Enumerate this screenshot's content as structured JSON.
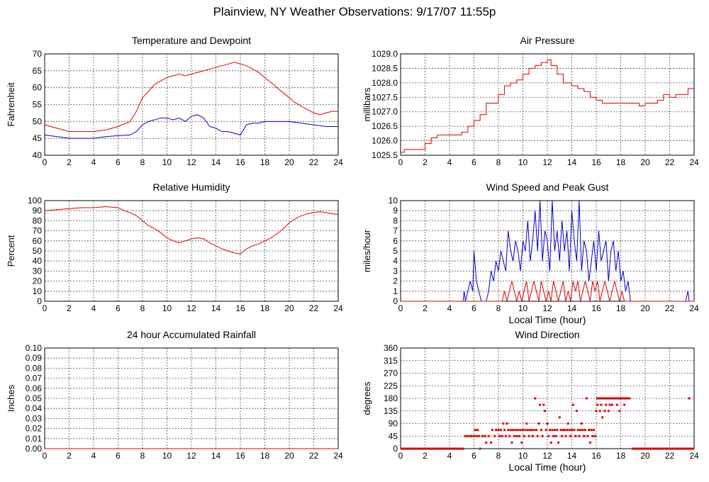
{
  "page": {
    "title": "Plainview, NY Weather Observations: 9/17/07 11:55p"
  },
  "colors": {
    "temperature": "#dd0000",
    "dewpoint": "#0000cc",
    "gust": "#0000cc",
    "speed": "#dd0000",
    "grid": "#555555"
  },
  "chart_data": [
    {
      "id": "temp",
      "type": "line",
      "title": "Temperature and Dewpoint",
      "xlabel": "",
      "ylabel": "Fahrenheit",
      "xlim": [
        0,
        24
      ],
      "ylim": [
        40,
        70
      ],
      "xticks": [
        0,
        2,
        4,
        6,
        8,
        10,
        12,
        14,
        16,
        18,
        20,
        22,
        24
      ],
      "yticks": [
        "40",
        "45",
        "50",
        "55",
        "60",
        "65",
        "70"
      ],
      "grid": true,
      "series": [
        {
          "color": "#dd0000",
          "x": [
            0,
            1,
            2,
            3,
            4,
            5,
            6,
            7,
            7.5,
            8,
            8.5,
            9,
            9.5,
            10,
            10.5,
            11,
            11.5,
            12,
            12.5,
            13,
            13.5,
            14,
            14.5,
            15,
            15.5,
            16,
            16.5,
            17,
            17.5,
            18,
            18.5,
            19,
            19.5,
            20,
            20.5,
            21,
            21.5,
            22,
            22.5,
            23,
            23.5,
            24
          ],
          "y": [
            49,
            48,
            47,
            47,
            47,
            47.5,
            48.5,
            50,
            53,
            57,
            59,
            61,
            62,
            63,
            63.5,
            64,
            63.5,
            64,
            64.5,
            65,
            65.5,
            66,
            66.5,
            67,
            67.5,
            67,
            66.5,
            65.5,
            64.5,
            63,
            61.5,
            60,
            58.5,
            57,
            55.5,
            54.5,
            53.5,
            52.5,
            52,
            52.5,
            53,
            53
          ]
        },
        {
          "color": "#0000cc",
          "x": [
            0,
            1,
            2,
            3,
            4,
            5,
            6,
            7,
            7.5,
            8,
            8.5,
            9,
            9.5,
            10,
            10.5,
            11,
            11.5,
            12,
            12.5,
            13,
            13.5,
            14,
            14.5,
            15,
            15.5,
            16,
            16.5,
            17,
            17.5,
            18,
            19,
            20,
            21,
            22,
            23,
            24
          ],
          "y": [
            46,
            45.5,
            45,
            45,
            45,
            45.5,
            45.8,
            46,
            47,
            49,
            50,
            50.5,
            51,
            51,
            50.5,
            51,
            50,
            51.5,
            52,
            51,
            48.5,
            48,
            47,
            47,
            46.5,
            46,
            49,
            49.5,
            49.5,
            50,
            50,
            50,
            49.5,
            49,
            48.5,
            48.5
          ]
        }
      ]
    },
    {
      "id": "pressure",
      "type": "line",
      "title": "Air Pressure",
      "xlabel": "",
      "ylabel": "millibars",
      "xlim": [
        0,
        24
      ],
      "ylim": [
        1025.5,
        1029.0
      ],
      "xticks": [
        0,
        2,
        4,
        6,
        8,
        10,
        12,
        14,
        16,
        18,
        20,
        22,
        24
      ],
      "yticks": [
        "1025.5",
        "1026.0",
        "1026.5",
        "1027.0",
        "1027.5",
        "1028.0",
        "1028.5",
        "1029.0"
      ],
      "grid": true,
      "series": [
        {
          "color": "#dd0000",
          "step": true,
          "x": [
            0,
            0.3,
            1,
            2,
            2.5,
            3,
            4,
            5,
            5.5,
            6,
            6.5,
            7,
            7.5,
            8,
            8.5,
            9,
            9.5,
            10,
            10.5,
            11,
            11.5,
            12,
            12.3,
            12.8,
            13.3,
            14,
            14.5,
            15,
            15.5,
            16,
            16.5,
            17,
            18,
            19,
            19.5,
            20,
            21,
            21.5,
            22,
            22.5,
            23,
            23.5,
            24
          ],
          "y": [
            1025.6,
            1025.7,
            1025.7,
            1025.9,
            1026.1,
            1026.2,
            1026.2,
            1026.3,
            1026.5,
            1026.7,
            1026.9,
            1027.3,
            1027.3,
            1027.6,
            1027.9,
            1028.0,
            1028.1,
            1028.3,
            1028.5,
            1028.6,
            1028.7,
            1028.8,
            1028.6,
            1028.3,
            1028.0,
            1027.9,
            1027.8,
            1027.7,
            1027.5,
            1027.4,
            1027.3,
            1027.3,
            1027.3,
            1027.3,
            1027.2,
            1027.3,
            1027.4,
            1027.6,
            1027.5,
            1027.6,
            1027.6,
            1027.8,
            1027.8
          ]
        }
      ]
    },
    {
      "id": "humidity",
      "type": "line",
      "title": "Relative Humidity",
      "xlabel": "",
      "ylabel": "Percent",
      "xlim": [
        0,
        24
      ],
      "ylim": [
        0,
        100
      ],
      "xticks": [
        0,
        2,
        4,
        6,
        8,
        10,
        12,
        14,
        16,
        18,
        20,
        22,
        24
      ],
      "yticks": [
        "0",
        "10",
        "20",
        "30",
        "40",
        "50",
        "60",
        "70",
        "80",
        "90",
        "100"
      ],
      "grid": true,
      "series": [
        {
          "color": "#dd0000",
          "x": [
            0,
            1,
            2,
            3,
            4,
            5,
            6,
            6.5,
            7,
            7.5,
            8,
            8.5,
            9,
            9.5,
            10,
            10.5,
            11,
            11.5,
            12,
            12.5,
            13,
            13.5,
            14,
            14.5,
            15,
            15.5,
            16,
            16.5,
            17,
            17.5,
            18,
            18.5,
            19,
            19.5,
            20,
            20.5,
            21,
            21.5,
            22,
            22.5,
            23,
            23.5,
            24
          ],
          "y": [
            90,
            91,
            92,
            93,
            93,
            94,
            93,
            90,
            88,
            85,
            80,
            75,
            72,
            68,
            63,
            60,
            58,
            60,
            62,
            63,
            62,
            58,
            55,
            52,
            50,
            48,
            47,
            52,
            55,
            57,
            60,
            63,
            67,
            72,
            78,
            82,
            85,
            87,
            88,
            89,
            88,
            87,
            86
          ]
        }
      ]
    },
    {
      "id": "wind",
      "type": "line",
      "title": "Wind Speed and Peak Gust",
      "xlabel": "Local Time (hour)",
      "ylabel": "miles/hour",
      "xlim": [
        0,
        24
      ],
      "ylim": [
        0,
        10
      ],
      "xticks": [
        0,
        2,
        4,
        6,
        8,
        10,
        12,
        14,
        16,
        18,
        20,
        22,
        24
      ],
      "yticks": [
        "0",
        "1",
        "2",
        "3",
        "4",
        "5",
        "6",
        "7",
        "8",
        "9",
        "10"
      ],
      "grid": true,
      "series": [
        {
          "color": "#0000cc",
          "x": [
            0,
            5.1,
            5.2,
            5.3,
            5.5,
            5.7,
            5.9,
            6.0,
            6.2,
            6.4,
            6.6,
            6.8,
            7.0,
            7.2,
            7.4,
            7.6,
            7.8,
            8.0,
            8.2,
            8.4,
            8.6,
            8.8,
            9.0,
            9.2,
            9.4,
            9.6,
            9.8,
            10.0,
            10.2,
            10.4,
            10.6,
            10.8,
            11.0,
            11.2,
            11.4,
            11.6,
            11.8,
            12.0,
            12.2,
            12.4,
            12.6,
            12.8,
            13.0,
            13.2,
            13.4,
            13.6,
            13.8,
            14.0,
            14.2,
            14.4,
            14.6,
            14.8,
            15.0,
            15.2,
            15.4,
            15.6,
            15.8,
            16.0,
            16.2,
            16.4,
            16.6,
            16.8,
            17.0,
            17.2,
            17.4,
            17.6,
            17.8,
            18.0,
            18.2,
            18.4,
            18.6,
            18.8,
            19.0,
            23.3,
            23.5,
            23.6,
            24
          ],
          "y": [
            0,
            0,
            1,
            0,
            1,
            2,
            1,
            5,
            2,
            1,
            0,
            0,
            0,
            1,
            3,
            2,
            4,
            3,
            5,
            4,
            3,
            7,
            5,
            4,
            6,
            5,
            3,
            6,
            5,
            8,
            4,
            6,
            9,
            5,
            10,
            4,
            7,
            6,
            3,
            10,
            5,
            7,
            4,
            8,
            5,
            7,
            3,
            9,
            6,
            4,
            10,
            3,
            6,
            5,
            2,
            4,
            6,
            3,
            7,
            4,
            5,
            6,
            2,
            5,
            6,
            3,
            5,
            2,
            3,
            1,
            2,
            0,
            0,
            0,
            1,
            0,
            0
          ]
        },
        {
          "color": "#dd0000",
          "x": [
            0,
            8.3,
            8.5,
            8.7,
            8.9,
            9.1,
            9.3,
            9.5,
            9.7,
            9.9,
            10.1,
            10.3,
            10.5,
            10.7,
            10.9,
            11.1,
            11.3,
            11.5,
            11.7,
            11.9,
            12.1,
            12.3,
            12.5,
            12.7,
            12.9,
            13.1,
            13.3,
            13.5,
            13.7,
            13.9,
            14.1,
            14.3,
            14.5,
            14.7,
            14.9,
            15.1,
            15.3,
            15.5,
            15.7,
            15.9,
            16.1,
            16.3,
            16.5,
            16.7,
            16.9,
            17.1,
            17.3,
            17.5,
            17.7,
            17.9,
            18.1,
            18.3,
            24
          ],
          "y": [
            0,
            0,
            1,
            0,
            1,
            2,
            1,
            0,
            1,
            0,
            1,
            2,
            0,
            1,
            2,
            1,
            0,
            2,
            1,
            0,
            1,
            0,
            2,
            1,
            0,
            1,
            2,
            0,
            1,
            0,
            2,
            1,
            2,
            0,
            1,
            2,
            1,
            0,
            2,
            1,
            2,
            0,
            1,
            2,
            1,
            0,
            1,
            2,
            1,
            0,
            1,
            0,
            0
          ]
        }
      ]
    },
    {
      "id": "rain",
      "type": "line",
      "title": "24 hour Accumulated Rainfall",
      "xlabel": "",
      "ylabel": "Inches",
      "xlim": [
        0,
        24
      ],
      "ylim": [
        0,
        0.1
      ],
      "xticks": [
        0,
        2,
        4,
        6,
        8,
        10,
        12,
        14,
        16,
        18,
        20,
        22,
        24
      ],
      "yticks": [
        "0.00",
        "0.01",
        "0.02",
        "0.03",
        "0.04",
        "0.05",
        "0.06",
        "0.07",
        "0.08",
        "0.09",
        "0.10"
      ],
      "grid": true,
      "series": [
        {
          "color": "#dd0000",
          "x": [
            0,
            24
          ],
          "y": [
            0,
            0
          ]
        }
      ]
    },
    {
      "id": "direction",
      "type": "scatter",
      "title": "Wind Direction",
      "xlabel": "Local Time (hour)",
      "ylabel": "degrees",
      "xlim": [
        0,
        24
      ],
      "ylim": [
        0,
        360
      ],
      "xticks": [
        0,
        2,
        4,
        6,
        8,
        10,
        12,
        14,
        16,
        18,
        20,
        22,
        24
      ],
      "yticks": [
        "0",
        "45",
        "90",
        "135",
        "180",
        "225",
        "270",
        "315",
        "360"
      ],
      "grid": true,
      "series": [
        {
          "color": "#dd0000",
          "segments": [
            [
              0,
              0,
              5.2,
              0
            ],
            [
              18.9,
              0,
              24,
              0
            ],
            [
              16.0,
              180,
              18.8,
              180
            ]
          ],
          "x": [
            5.3,
            5.5,
            5.7,
            5.8,
            6.0,
            6.1,
            6.2,
            6.3,
            6.4,
            6.5,
            6.7,
            6.9,
            7.0,
            7.2,
            7.4,
            7.5,
            7.7,
            7.8,
            8.0,
            8.1,
            8.2,
            8.3,
            8.4,
            8.5,
            8.6,
            8.7,
            8.8,
            8.9,
            9.0,
            9.1,
            9.2,
            9.3,
            9.4,
            9.5,
            9.6,
            9.7,
            9.8,
            9.9,
            10.0,
            10.1,
            10.2,
            10.3,
            10.4,
            10.5,
            10.6,
            10.7,
            10.8,
            10.9,
            11.0,
            11.1,
            11.2,
            11.3,
            11.4,
            11.5,
            11.6,
            11.7,
            11.8,
            11.9,
            12.0,
            12.1,
            12.2,
            12.3,
            12.4,
            12.5,
            12.6,
            12.7,
            12.8,
            12.9,
            13.0,
            13.1,
            13.2,
            13.3,
            13.4,
            13.5,
            13.6,
            13.7,
            13.8,
            13.9,
            14.0,
            14.1,
            14.2,
            14.3,
            14.4,
            14.5,
            14.6,
            14.7,
            14.8,
            14.9,
            15.0,
            15.1,
            15.2,
            15.3,
            15.4,
            15.5,
            15.6,
            15.7,
            15.8,
            15.9,
            16.0,
            16.1,
            16.2,
            16.3,
            16.4,
            16.5,
            16.6,
            16.7,
            16.8,
            16.9,
            17.0,
            17.1,
            17.2,
            17.3,
            17.5,
            17.7,
            17.9,
            18.1,
            18.3,
            18.5,
            18.7,
            23.6
          ],
          "y": [
            45,
            45,
            45,
            45,
            45,
            67,
            45,
            67,
            45,
            0,
            45,
            45,
            22,
            45,
            22,
            67,
            45,
            67,
            67,
            45,
            67,
            45,
            90,
            67,
            45,
            90,
            67,
            45,
            67,
            22,
            67,
            45,
            67,
            45,
            67,
            45,
            67,
            22,
            67,
            45,
            67,
            90,
            67,
            45,
            67,
            67,
            45,
            67,
            180,
            67,
            45,
            90,
            157,
            67,
            45,
            157,
            135,
            67,
            90,
            45,
            67,
            22,
            67,
            45,
            67,
            45,
            67,
            22,
            112,
            67,
            45,
            67,
            67,
            45,
            67,
            90,
            67,
            45,
            67,
            157,
            67,
            45,
            135,
            67,
            45,
            67,
            90,
            67,
            45,
            67,
            180,
            45,
            67,
            22,
            67,
            45,
            67,
            45,
            135,
            157,
            180,
            135,
            157,
            112,
            180,
            135,
            157,
            180,
            135,
            157,
            180,
            157,
            180,
            157,
            135,
            180,
            157,
            180,
            180,
            180
          ]
        }
      ]
    }
  ]
}
